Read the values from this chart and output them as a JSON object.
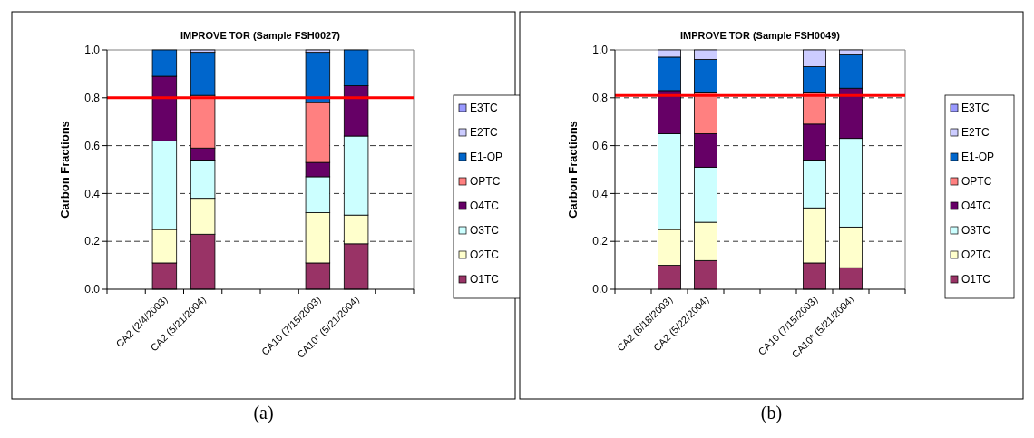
{
  "chart_data": [
    {
      "type": "bar",
      "title": "IMPROVE TOR (Sample FSH0027)",
      "ylabel": "Carbon Fractions",
      "categories": [
        null,
        "CA2 (2/4/2003)",
        "CA2 (5/21/2004)",
        null,
        null,
        "CA10 (7/15/2003)",
        "CA10* (5/21/2004)",
        null
      ],
      "stacked": true,
      "ylim": [
        0,
        1
      ],
      "yticks": [
        {
          "value": 0,
          "label": "0.0"
        },
        {
          "value": 0.2,
          "label": "0.2"
        },
        {
          "value": 0.4,
          "label": "0.4"
        },
        {
          "value": 0.6,
          "label": "0.6"
        },
        {
          "value": 0.8,
          "label": "0.8"
        },
        {
          "value": 1,
          "label": "1.0"
        }
      ],
      "grid": "y",
      "legend": "right",
      "annotations": [
        "(a)"
      ],
      "ref_lines": [
        {
          "axis": "y",
          "value": 0.8,
          "color": "#ff0000"
        }
      ],
      "series": [
        {
          "name": "O1TC",
          "color": "#993366",
          "values": [
            null,
            0.11,
            0.23,
            null,
            null,
            0.11,
            0.19,
            null
          ]
        },
        {
          "name": "O2TC",
          "color": "#ffffcc",
          "values": [
            null,
            0.14,
            0.15,
            null,
            null,
            0.21,
            0.12,
            null
          ]
        },
        {
          "name": "O3TC",
          "color": "#ccffff",
          "values": [
            null,
            0.37,
            0.16,
            null,
            null,
            0.15,
            0.33,
            null
          ]
        },
        {
          "name": "O4TC",
          "color": "#660066",
          "values": [
            null,
            0.27,
            0.05,
            null,
            null,
            0.06,
            0.21,
            null
          ]
        },
        {
          "name": "OPTC",
          "color": "#ff8080",
          "values": [
            null,
            0,
            0.22,
            null,
            null,
            0.25,
            0,
            null
          ]
        },
        {
          "name": "E1-OP",
          "color": "#0066cc",
          "values": [
            null,
            0.11,
            0.18,
            null,
            null,
            0.21,
            0.15,
            null
          ]
        },
        {
          "name": "E2TC",
          "color": "#ccccff",
          "values": [
            null,
            0,
            0.01,
            null,
            null,
            0.01,
            0,
            null
          ]
        },
        {
          "name": "E3TC",
          "color": "#9999ff",
          "values": [
            null,
            0,
            0,
            null,
            null,
            0,
            0,
            null
          ]
        }
      ]
    },
    {
      "type": "bar",
      "title": "IMPROVE TOR (Sample FSH0049)",
      "ylabel": "Carbon Fractions",
      "categories": [
        null,
        "CA2 (8/18/2003)",
        "CA2 (5/22/2004)",
        null,
        null,
        "CA10 (7/15/2003)",
        "CA10* (5/21/2004)",
        null
      ],
      "stacked": true,
      "ylim": [
        0,
        1
      ],
      "yticks": [
        {
          "value": 0,
          "label": "0.0"
        },
        {
          "value": 0.2,
          "label": "0.2"
        },
        {
          "value": 0.4,
          "label": "0.4"
        },
        {
          "value": 0.6,
          "label": "0.6"
        },
        {
          "value": 0.8,
          "label": "0.8"
        },
        {
          "value": 1,
          "label": "1.0"
        }
      ],
      "grid": "y",
      "legend": "right",
      "annotations": [
        "(b)"
      ],
      "ref_lines": [
        {
          "axis": "y",
          "value": 0.81,
          "color": "#ff0000"
        }
      ],
      "series": [
        {
          "name": "O1TC",
          "color": "#993366",
          "values": [
            null,
            0.1,
            0.12,
            null,
            null,
            0.11,
            0.09,
            null
          ]
        },
        {
          "name": "O2TC",
          "color": "#ffffcc",
          "values": [
            null,
            0.15,
            0.16,
            null,
            null,
            0.23,
            0.17,
            null
          ]
        },
        {
          "name": "O3TC",
          "color": "#ccffff",
          "values": [
            null,
            0.4,
            0.23,
            null,
            null,
            0.2,
            0.37,
            null
          ]
        },
        {
          "name": "O4TC",
          "color": "#660066",
          "values": [
            null,
            0.18,
            0.14,
            null,
            null,
            0.15,
            0.21,
            null
          ]
        },
        {
          "name": "OPTC",
          "color": "#ff8080",
          "values": [
            null,
            0,
            0.17,
            null,
            null,
            0.13,
            0,
            null
          ]
        },
        {
          "name": "E1-OP",
          "color": "#0066cc",
          "values": [
            null,
            0.14,
            0.14,
            null,
            null,
            0.11,
            0.14,
            null
          ]
        },
        {
          "name": "E2TC",
          "color": "#ccccff",
          "values": [
            null,
            0.03,
            0.04,
            null,
            null,
            0.07,
            0.02,
            null
          ]
        },
        {
          "name": "E3TC",
          "color": "#9999ff",
          "values": [
            null,
            0,
            0,
            null,
            null,
            0,
            0,
            null
          ]
        }
      ]
    }
  ]
}
